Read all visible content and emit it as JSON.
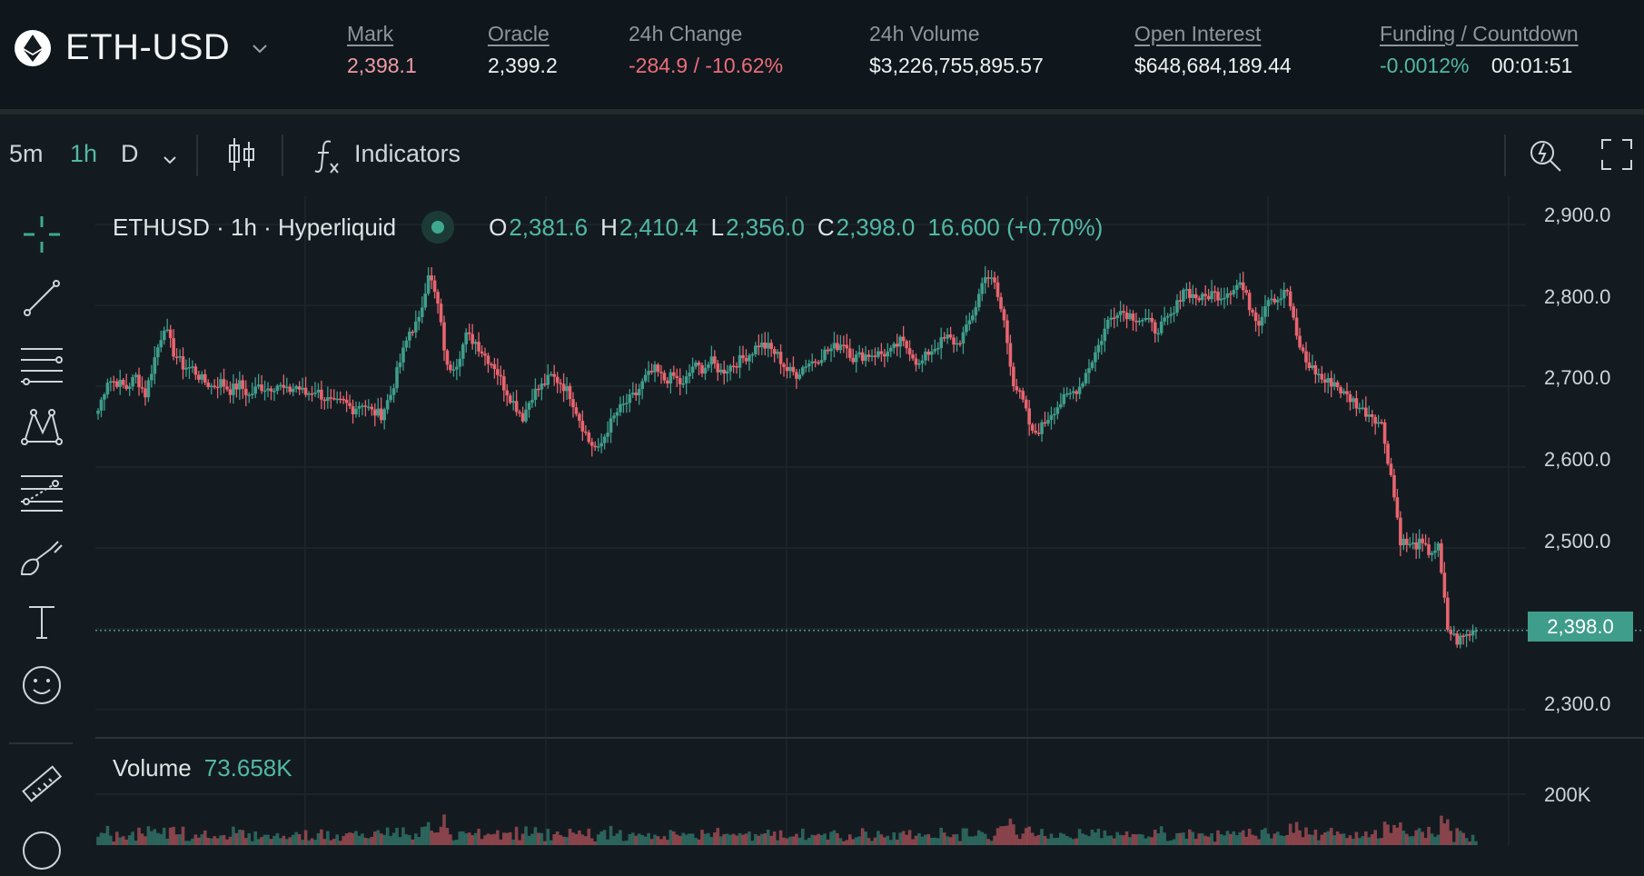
{
  "header": {
    "pair": "ETH-USD",
    "stats": [
      {
        "label": "Mark",
        "value": "2,398.1"
      },
      {
        "label": "Oracle",
        "value": "2,399.2"
      },
      {
        "label": "24h Change",
        "value": "-284.9 / -10.62%"
      },
      {
        "label": "24h Volume",
        "value": "$3,226,755,895.57"
      },
      {
        "label": "Open Interest",
        "value": "$648,684,189.44"
      },
      {
        "label": "Funding / Countdown",
        "value": "-0.0012%",
        "value2": "00:01:51"
      }
    ]
  },
  "toolbar": {
    "intervals": [
      "5m",
      "1h",
      "D"
    ],
    "active_interval": "1h",
    "indicators_label": "Indicators"
  },
  "left_tools": [
    "crosshair-icon",
    "trend-line-icon",
    "horizontal-lines-icon",
    "pattern-icon",
    "fib-icon",
    "brush-icon",
    "text-icon",
    "emoji-icon",
    "ruler-icon"
  ],
  "legend": {
    "symbol": "ETHUSD · 1h · Hyperliquid",
    "o_label": "O",
    "o": "2,381.6",
    "h_label": "H",
    "h": "2,410.4",
    "l_label": "L",
    "l": "2,356.0",
    "c_label": "C",
    "c": "2,398.0",
    "change": "16.600 (+0.70%)"
  },
  "volume": {
    "label": "Volume",
    "value": "73.658K",
    "axis_tick": "200K"
  },
  "current_price_label": "2,398.0",
  "colors": {
    "up": "#3f9d8b",
    "down": "#e8646e",
    "background": "#131b21",
    "grid": "#1f272c"
  },
  "chart_data": {
    "type": "candlestick",
    "symbol": "ETHUSD",
    "interval": "1h",
    "y_ticks": [
      "2,900.0",
      "2,800.0",
      "2,700.0",
      "2,600.0",
      "2,500.0",
      "2,300.0"
    ],
    "ylim": [
      2265,
      2935
    ],
    "current_price": 2398.0,
    "close_path": [
      2670,
      2708,
      2705,
      2698,
      2712,
      2690,
      2735,
      2775,
      2742,
      2725,
      2722,
      2708,
      2700,
      2705,
      2695,
      2702,
      2688,
      2700,
      2698,
      2702,
      2693,
      2700,
      2690,
      2696,
      2685,
      2678,
      2680,
      2672,
      2680,
      2668,
      2665,
      2690,
      2730,
      2768,
      2780,
      2842,
      2800,
      2722,
      2730,
      2762,
      2755,
      2738,
      2725,
      2700,
      2680,
      2662,
      2690,
      2700,
      2712,
      2705,
      2690,
      2660,
      2632,
      2620,
      2648,
      2668,
      2680,
      2690,
      2710,
      2720,
      2708,
      2712,
      2700,
      2725,
      2722,
      2730,
      2718,
      2725,
      2732,
      2740,
      2752,
      2748,
      2738,
      2720,
      2715,
      2728,
      2732,
      2742,
      2748,
      2755,
      2735,
      2738,
      2740,
      2740,
      2742,
      2755,
      2745,
      2725,
      2742,
      2752,
      2760,
      2752,
      2770,
      2800,
      2840,
      2825,
      2780,
      2705,
      2680,
      2640,
      2650,
      2668,
      2680,
      2690,
      2700,
      2725,
      2750,
      2780,
      2795,
      2790,
      2785,
      2782,
      2770,
      2778,
      2790,
      2822,
      2812,
      2808,
      2815,
      2812,
      2820,
      2828,
      2800,
      2780,
      2812,
      2808,
      2818,
      2760,
      2730,
      2718,
      2705,
      2705,
      2690,
      2682,
      2670,
      2665,
      2652,
      2590,
      2510,
      2502,
      2505,
      2495,
      2500,
      2400,
      2385,
      2392,
      2398
    ]
  }
}
